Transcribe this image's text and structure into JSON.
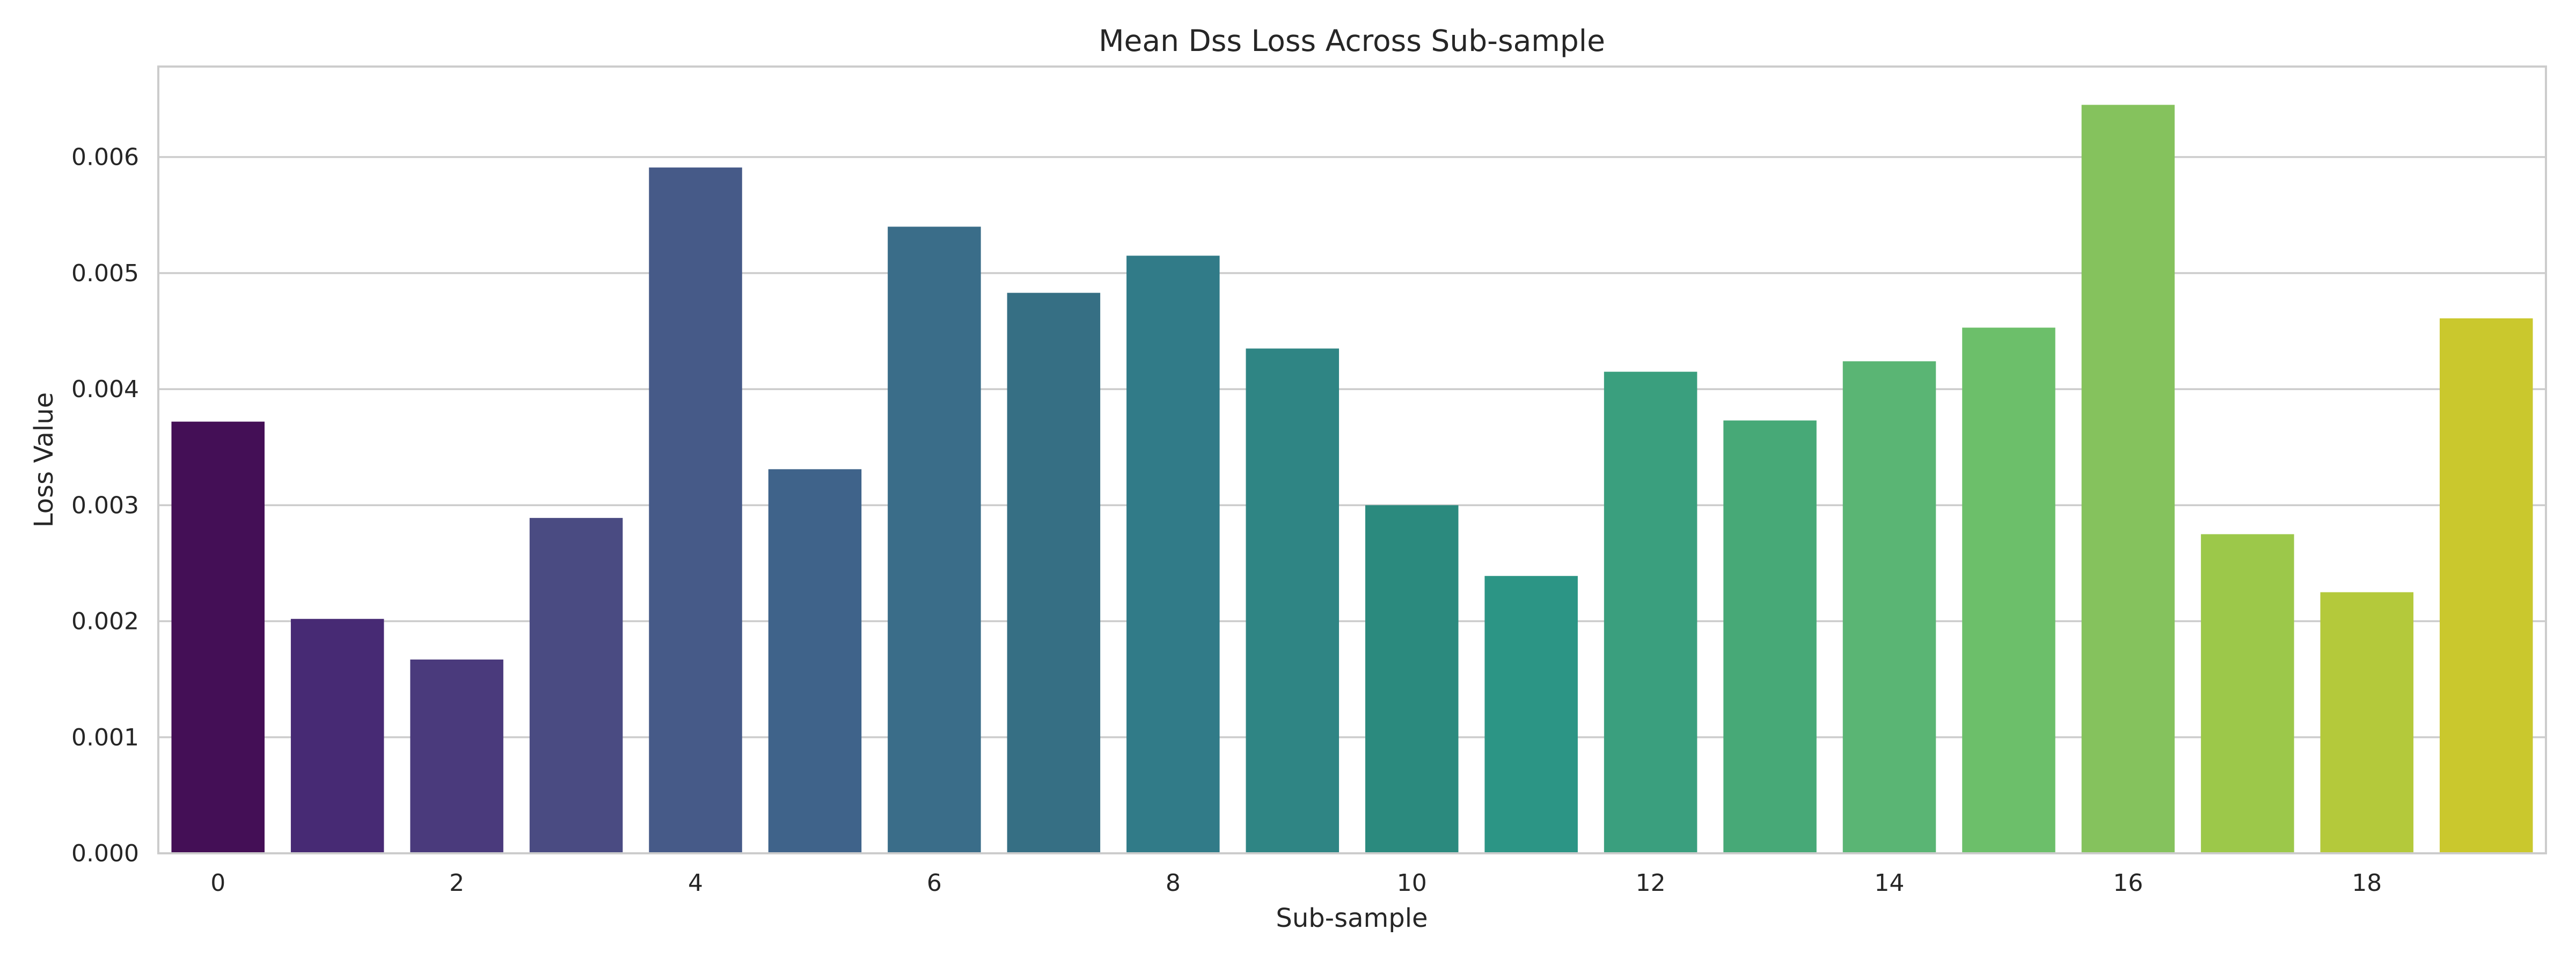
{
  "chart_data": {
    "type": "bar",
    "title": "Mean Dss Loss Across Sub-sample",
    "xlabel": "Sub-sample",
    "ylabel": "Loss Value",
    "categories": [
      "0",
      "1",
      "2",
      "3",
      "4",
      "5",
      "6",
      "7",
      "8",
      "9",
      "10",
      "11",
      "12",
      "13",
      "14",
      "15",
      "16",
      "17",
      "18",
      "19"
    ],
    "x_tick_labels": [
      "0",
      "2",
      "4",
      "6",
      "8",
      "10",
      "12",
      "14",
      "16",
      "18"
    ],
    "values": [
      0.00372,
      0.00202,
      0.00167,
      0.00289,
      0.00591,
      0.00331,
      0.0054,
      0.00483,
      0.00515,
      0.00435,
      0.003,
      0.00239,
      0.00415,
      0.00373,
      0.00424,
      0.00453,
      0.00645,
      0.00275,
      0.00225,
      0.00461
    ],
    "colors": [
      "#440f56",
      "#472a74",
      "#4a3a7c",
      "#4a4b82",
      "#465a88",
      "#3f638a",
      "#3a6d89",
      "#366f84",
      "#317b88",
      "#2f8584",
      "#2b8a7e",
      "#2c9585",
      "#3a9f7e",
      "#47a977",
      "#5ab574",
      "#6cbf6a",
      "#85c25d",
      "#9cc84a",
      "#b4c93b",
      "#cac82d"
    ],
    "ylim": [
      0,
      0.00678
    ],
    "yticks": [
      "0.000",
      "0.001",
      "0.002",
      "0.003",
      "0.004",
      "0.005",
      "0.006"
    ],
    "grid": "horizontal",
    "legend": "none"
  }
}
